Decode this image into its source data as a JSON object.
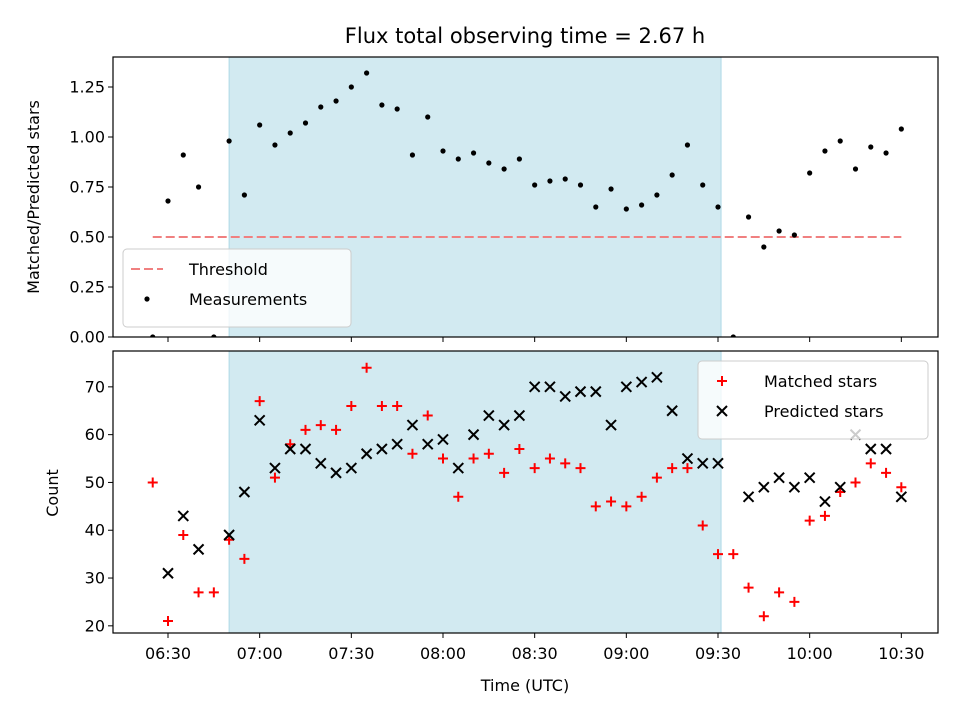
{
  "chart_data": {
    "type": "scatter",
    "title": "Flux total observing time = 2.67 h",
    "xlabel": "Time (UTC)",
    "x_ticks": [
      "06:30",
      "07:00",
      "07:30",
      "08:00",
      "08:30",
      "09:00",
      "09:30",
      "10:00",
      "10:30"
    ],
    "x_range": [
      "06:12",
      "10:42"
    ],
    "shaded_interval": {
      "start": "06:50",
      "end": "09:31",
      "color": "#add8e6"
    },
    "panels": [
      {
        "ylabel": "Matched/Predicted stars",
        "ylim": [
          0,
          1.4
        ],
        "y_ticks": [
          "0.00",
          "0.25",
          "0.50",
          "0.75",
          "1.00",
          "1.25"
        ],
        "legend_position": "lower-left",
        "threshold": {
          "name": "Threshold",
          "value": 0.5,
          "x_start": "06:25",
          "x_end": "10:30",
          "color": "#f08080"
        },
        "series": [
          {
            "name": "Measurements",
            "color": "#000000",
            "marker": "dot",
            "points": [
              [
                "06:25",
                0.0
              ],
              [
                "06:30",
                0.68
              ],
              [
                "06:35",
                0.91
              ],
              [
                "06:40",
                0.75
              ],
              [
                "06:45",
                0.0
              ],
              [
                "06:50",
                0.98
              ],
              [
                "06:55",
                0.71
              ],
              [
                "07:00",
                1.06
              ],
              [
                "07:05",
                0.96
              ],
              [
                "07:10",
                1.02
              ],
              [
                "07:15",
                1.07
              ],
              [
                "07:20",
                1.15
              ],
              [
                "07:25",
                1.18
              ],
              [
                "07:30",
                1.25
              ],
              [
                "07:35",
                1.32
              ],
              [
                "07:40",
                1.16
              ],
              [
                "07:45",
                1.14
              ],
              [
                "07:50",
                0.91
              ],
              [
                "07:55",
                1.1
              ],
              [
                "08:00",
                0.93
              ],
              [
                "08:05",
                0.89
              ],
              [
                "08:10",
                0.92
              ],
              [
                "08:15",
                0.87
              ],
              [
                "08:20",
                0.84
              ],
              [
                "08:25",
                0.89
              ],
              [
                "08:30",
                0.76
              ],
              [
                "08:35",
                0.78
              ],
              [
                "08:40",
                0.79
              ],
              [
                "08:45",
                0.76
              ],
              [
                "08:50",
                0.65
              ],
              [
                "08:55",
                0.74
              ],
              [
                "09:00",
                0.64
              ],
              [
                "09:05",
                0.66
              ],
              [
                "09:10",
                0.71
              ],
              [
                "09:15",
                0.81
              ],
              [
                "09:20",
                0.96
              ],
              [
                "09:25",
                0.76
              ],
              [
                "09:30",
                0.65
              ],
              [
                "09:35",
                0.0
              ],
              [
                "09:40",
                0.6
              ],
              [
                "09:45",
                0.45
              ],
              [
                "09:50",
                0.53
              ],
              [
                "09:55",
                0.51
              ],
              [
                "10:00",
                0.82
              ],
              [
                "10:05",
                0.93
              ],
              [
                "10:10",
                0.98
              ],
              [
                "10:15",
                0.84
              ],
              [
                "10:20",
                0.95
              ],
              [
                "10:25",
                0.92
              ],
              [
                "10:30",
                1.04
              ]
            ]
          }
        ]
      },
      {
        "ylabel": "Count",
        "ylim": [
          18.5,
          77.5
        ],
        "y_ticks": [
          "20",
          "30",
          "40",
          "50",
          "60",
          "70"
        ],
        "legend_position": "upper-right",
        "series": [
          {
            "name": "Matched stars",
            "color": "#ff0000",
            "marker": "plus",
            "points": [
              [
                "06:25",
                50
              ],
              [
                "06:30",
                21
              ],
              [
                "06:35",
                39
              ],
              [
                "06:40",
                27
              ],
              [
                "06:45",
                27
              ],
              [
                "06:50",
                38
              ],
              [
                "06:55",
                34
              ],
              [
                "07:00",
                67
              ],
              [
                "07:05",
                51
              ],
              [
                "07:10",
                58
              ],
              [
                "07:15",
                61
              ],
              [
                "07:20",
                62
              ],
              [
                "07:25",
                61
              ],
              [
                "07:30",
                66
              ],
              [
                "07:35",
                74
              ],
              [
                "07:40",
                66
              ],
              [
                "07:45",
                66
              ],
              [
                "07:50",
                56
              ],
              [
                "07:55",
                64
              ],
              [
                "08:00",
                55
              ],
              [
                "08:05",
                47
              ],
              [
                "08:10",
                55
              ],
              [
                "08:15",
                56
              ],
              [
                "08:20",
                52
              ],
              [
                "08:25",
                57
              ],
              [
                "08:30",
                53
              ],
              [
                "08:35",
                55
              ],
              [
                "08:40",
                54
              ],
              [
                "08:45",
                53
              ],
              [
                "08:50",
                45
              ],
              [
                "08:55",
                46
              ],
              [
                "09:00",
                45
              ],
              [
                "09:05",
                47
              ],
              [
                "09:10",
                51
              ],
              [
                "09:15",
                53
              ],
              [
                "09:20",
                53
              ],
              [
                "09:25",
                41
              ],
              [
                "09:30",
                35
              ],
              [
                "09:35",
                35
              ],
              [
                "09:40",
                28
              ],
              [
                "09:45",
                22
              ],
              [
                "09:50",
                27
              ],
              [
                "09:55",
                25
              ],
              [
                "10:00",
                42
              ],
              [
                "10:05",
                43
              ],
              [
                "10:10",
                48
              ],
              [
                "10:15",
                50
              ],
              [
                "10:20",
                54
              ],
              [
                "10:25",
                52
              ],
              [
                "10:30",
                49
              ]
            ]
          },
          {
            "name": "Predicted stars",
            "color": "#000000",
            "marker": "x",
            "points": [
              [
                "06:30",
                31
              ],
              [
                "06:35",
                43
              ],
              [
                "06:40",
                36
              ],
              [
                "06:50",
                39
              ],
              [
                "06:55",
                48
              ],
              [
                "07:00",
                63
              ],
              [
                "07:05",
                53
              ],
              [
                "07:10",
                57
              ],
              [
                "07:15",
                57
              ],
              [
                "07:20",
                54
              ],
              [
                "07:25",
                52
              ],
              [
                "07:30",
                53
              ],
              [
                "07:35",
                56
              ],
              [
                "07:40",
                57
              ],
              [
                "07:45",
                58
              ],
              [
                "07:50",
                62
              ],
              [
                "07:55",
                58
              ],
              [
                "08:00",
                59
              ],
              [
                "08:05",
                53
              ],
              [
                "08:10",
                60
              ],
              [
                "08:15",
                64
              ],
              [
                "08:20",
                62
              ],
              [
                "08:25",
                64
              ],
              [
                "08:30",
                70
              ],
              [
                "08:35",
                70
              ],
              [
                "08:40",
                68
              ],
              [
                "08:45",
                69
              ],
              [
                "08:50",
                69
              ],
              [
                "08:55",
                62
              ],
              [
                "09:00",
                70
              ],
              [
                "09:05",
                71
              ],
              [
                "09:10",
                72
              ],
              [
                "09:15",
                65
              ],
              [
                "09:20",
                55
              ],
              [
                "09:25",
                54
              ],
              [
                "09:30",
                54
              ],
              [
                "09:40",
                47
              ],
              [
                "09:45",
                49
              ],
              [
                "09:50",
                51
              ],
              [
                "09:55",
                49
              ],
              [
                "10:00",
                51
              ],
              [
                "10:05",
                46
              ],
              [
                "10:10",
                49
              ],
              [
                "10:15",
                60
              ],
              [
                "10:20",
                57
              ],
              [
                "10:25",
                57
              ],
              [
                "10:30",
                47
              ]
            ]
          }
        ]
      }
    ]
  }
}
